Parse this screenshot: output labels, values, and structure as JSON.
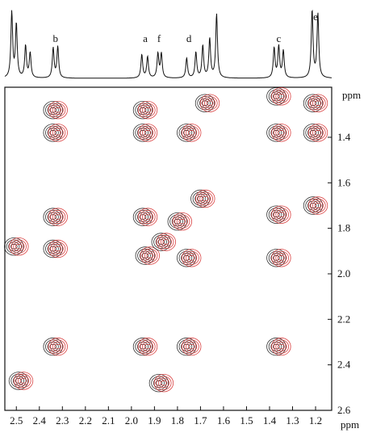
{
  "chart_data": {
    "type": "2d-nmr-cosy-overlay",
    "title": "",
    "xlabel": "ppm",
    "ylabel": "ppm",
    "x_axis": {
      "range": [
        2.55,
        1.13
      ],
      "reversed": true,
      "ticks": [
        2.5,
        2.4,
        2.3,
        2.2,
        2.1,
        2.0,
        1.9,
        1.8,
        1.7,
        1.6,
        1.5,
        1.4,
        1.3,
        1.2
      ],
      "tick_labels": [
        "2.5",
        "2.4",
        "2.3",
        "2.2",
        "2.1",
        "2.0",
        "1.9",
        "1.8",
        "1.7",
        "1.6",
        "1.5",
        "1.4",
        "1.3",
        "1.2"
      ],
      "unit": "ppm"
    },
    "y_axis": {
      "range": [
        1.18,
        2.6
      ],
      "ticks": [
        1.4,
        1.6,
        1.8,
        2.0,
        2.2,
        2.4,
        2.6
      ],
      "tick_labels": [
        "1.4",
        "1.6",
        "1.8",
        "2.0",
        "2.2",
        "2.4",
        "2.6"
      ],
      "unit": "ppm"
    },
    "peak_labels": [
      {
        "label": "b",
        "shift": 2.33
      },
      {
        "label": "a",
        "shift": 1.94
      },
      {
        "label": "f",
        "shift": 1.88
      },
      {
        "label": "d",
        "shift": 1.75
      },
      {
        "label": "c",
        "shift": 1.36
      },
      {
        "label": "e",
        "shift": 1.2
      }
    ],
    "projection_peaks": [
      {
        "shift": 2.52,
        "height": 0.92
      },
      {
        "shift": 2.5,
        "height": 0.75
      },
      {
        "shift": 2.46,
        "height": 0.45
      },
      {
        "shift": 2.44,
        "height": 0.35
      },
      {
        "shift": 2.34,
        "height": 0.42
      },
      {
        "shift": 2.32,
        "height": 0.44
      },
      {
        "shift": 1.955,
        "height": 0.33
      },
      {
        "shift": 1.93,
        "height": 0.3
      },
      {
        "shift": 1.885,
        "height": 0.34
      },
      {
        "shift": 1.87,
        "height": 0.34
      },
      {
        "shift": 1.76,
        "height": 0.28
      },
      {
        "shift": 1.72,
        "height": 0.36
      },
      {
        "shift": 1.69,
        "height": 0.45
      },
      {
        "shift": 1.66,
        "height": 0.55
      },
      {
        "shift": 1.63,
        "height": 0.9
      },
      {
        "shift": 1.38,
        "height": 0.42
      },
      {
        "shift": 1.36,
        "height": 0.44
      },
      {
        "shift": 1.34,
        "height": 0.38
      },
      {
        "shift": 1.215,
        "height": 0.95
      },
      {
        "shift": 1.19,
        "height": 0.9
      }
    ],
    "series": [
      {
        "color": "#111111"
      },
      {
        "color": "#d42020"
      }
    ],
    "cross_peaks": [
      {
        "x": 2.33,
        "y": 1.28
      },
      {
        "x": 1.94,
        "y": 1.28
      },
      {
        "x": 1.75,
        "y": 1.38
      },
      {
        "x": 1.67,
        "y": 1.25
      },
      {
        "x": 1.36,
        "y": 1.38
      },
      {
        "x": 1.36,
        "y": 1.22
      },
      {
        "x": 1.2,
        "y": 1.38
      },
      {
        "x": 1.2,
        "y": 1.25
      },
      {
        "x": 2.33,
        "y": 1.38
      },
      {
        "x": 1.94,
        "y": 1.38
      },
      {
        "x": 1.69,
        "y": 1.67
      },
      {
        "x": 1.36,
        "y": 1.74
      },
      {
        "x": 1.2,
        "y": 1.7
      },
      {
        "x": 2.33,
        "y": 1.75
      },
      {
        "x": 1.94,
        "y": 1.75
      },
      {
        "x": 1.79,
        "y": 1.77
      },
      {
        "x": 2.5,
        "y": 1.88
      },
      {
        "x": 2.33,
        "y": 1.89
      },
      {
        "x": 1.93,
        "y": 1.92
      },
      {
        "x": 1.86,
        "y": 1.86
      },
      {
        "x": 1.75,
        "y": 1.93
      },
      {
        "x": 1.36,
        "y": 1.93
      },
      {
        "x": 2.33,
        "y": 2.32
      },
      {
        "x": 1.94,
        "y": 2.32
      },
      {
        "x": 1.75,
        "y": 2.32
      },
      {
        "x": 1.36,
        "y": 2.32
      },
      {
        "x": 2.48,
        "y": 2.47
      },
      {
        "x": 1.87,
        "y": 2.48
      }
    ],
    "grid": false,
    "legend": "none"
  }
}
